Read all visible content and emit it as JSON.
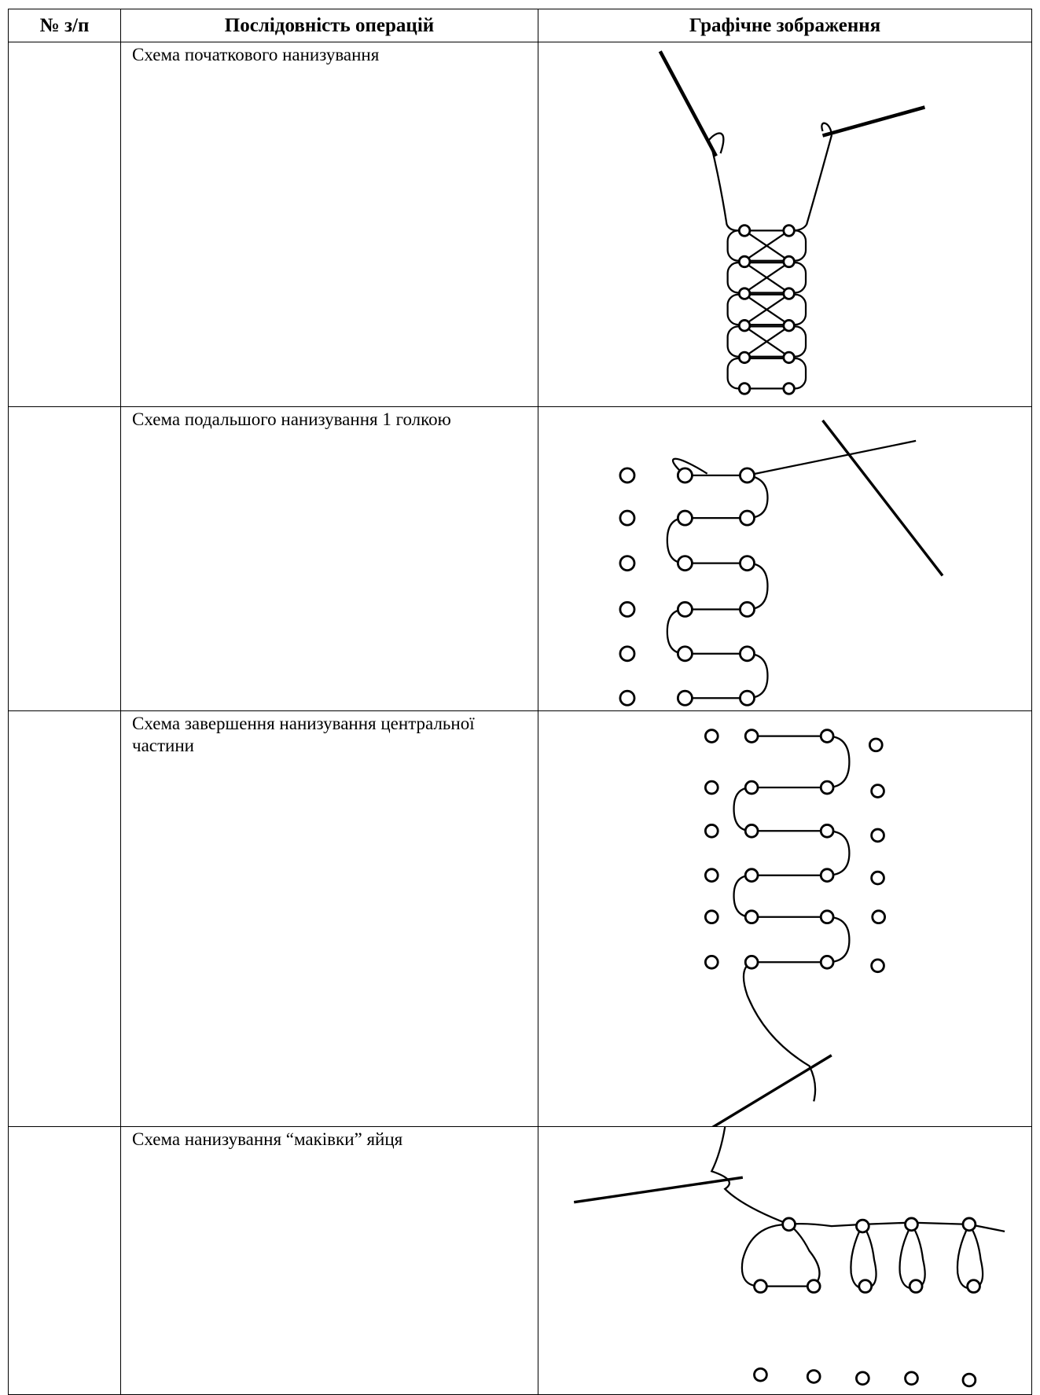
{
  "table": {
    "headers": [
      "№ з/п",
      "Послідовність операцій",
      "Графічне зображення"
    ],
    "rows": [
      {
        "operation": "Схема початкового нанизування"
      },
      {
        "operation": "Схема подальшого нанизування 1 голкою"
      },
      {
        "operation": "Схема завершення нанизування центральної частини"
      },
      {
        "operation": "Схема нанизування “маківки” яйця"
      }
    ]
  }
}
